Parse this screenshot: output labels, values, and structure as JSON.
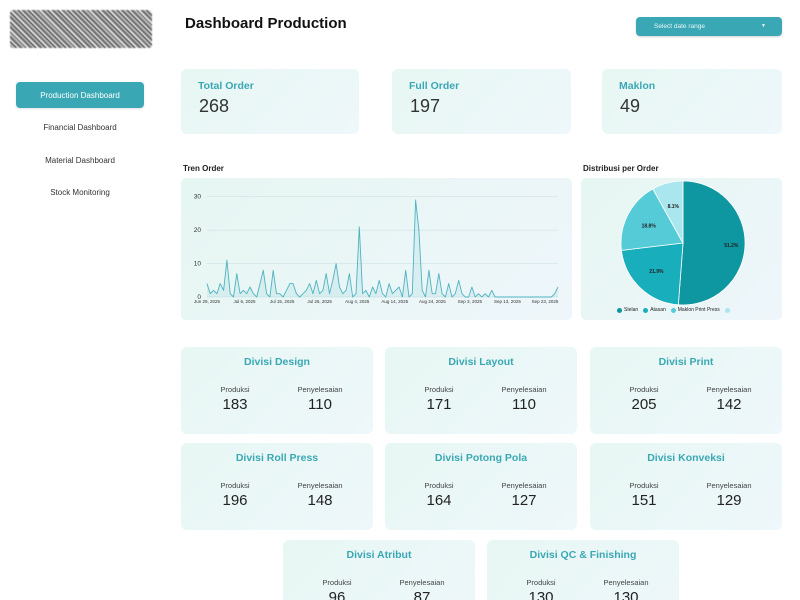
{
  "sidebar": {
    "items": [
      {
        "label": "Production Dashboard",
        "active": true
      },
      {
        "label": "Financial Dashboard",
        "active": false
      },
      {
        "label": "Material Dashboard",
        "active": false
      },
      {
        "label": "Stock Monitoring",
        "active": false
      }
    ]
  },
  "header": {
    "title": "Dashboard Production",
    "date_placeholder": "Select date range",
    "caret_icon": "chevron-down-icon"
  },
  "kpis": [
    {
      "label": "Total Order",
      "value": "268"
    },
    {
      "label": "Full Order",
      "value": "197"
    },
    {
      "label": "Maklon",
      "value": "49"
    }
  ],
  "colors": {
    "accent": "#3aa8b4",
    "line": "#4fb3c0",
    "pie": [
      "#0e96a1",
      "#19aebb",
      "#55cbd8",
      "#a9e6ee"
    ]
  },
  "charts": {
    "trend_title": "Tren Order",
    "pie_title": "Distribusi per Order"
  },
  "chart_data": [
    {
      "type": "line",
      "title": "Tren Order",
      "x_tick_labels": [
        "Jun 29, 2025",
        "Jul 6, 2025",
        "Jul 15, 2025",
        "Jul 26, 2025",
        "Aug 4, 2025",
        "Aug 14, 2025",
        "Aug 24, 2025",
        "Sep 3, 2025",
        "Sep 13, 2025",
        "Sep 23, 2025"
      ],
      "y_ticks": [
        0,
        10,
        20,
        30
      ],
      "ylim": [
        0,
        32
      ],
      "grid": true,
      "series": [
        {
          "values": [
            4,
            1,
            2,
            1,
            4,
            2,
            11,
            1,
            0,
            7,
            1,
            2,
            1,
            3,
            1,
            0,
            4,
            8,
            1,
            0,
            8,
            1,
            1,
            0,
            2,
            4,
            4,
            1,
            0,
            1,
            2,
            4,
            1,
            5,
            1,
            2,
            7,
            1,
            5,
            10,
            3,
            1,
            2,
            7,
            0,
            1,
            21,
            1,
            2,
            0,
            3,
            1,
            5,
            1,
            0,
            4,
            1,
            2,
            3,
            0,
            8,
            0,
            1,
            29,
            20,
            2,
            0,
            8,
            1,
            1,
            7,
            1,
            0,
            4,
            0,
            1,
            5,
            1,
            0,
            0,
            3,
            0,
            1,
            0,
            1,
            0,
            2,
            0,
            0,
            0,
            0,
            0,
            0,
            0,
            0,
            0,
            0,
            0,
            0,
            0,
            0,
            0,
            0,
            0,
            0,
            1,
            3
          ]
        }
      ]
    },
    {
      "type": "pie",
      "title": "Distribusi per Order",
      "categories": [
        "Stelan",
        "Atasan",
        "Maklon Print Press",
        ""
      ],
      "values": [
        51.2,
        21.9,
        18.8,
        8.1
      ],
      "value_labels": [
        "51.2%",
        "21.9%",
        "18.8%",
        "8.1%"
      ],
      "legend": "bottom"
    }
  ],
  "divisions": [
    {
      "title": "Divisi Design",
      "produksi_label": "Produksi",
      "produksi": "183",
      "penyelesaian_label": "Penyelesaian",
      "penyelesaian": "110"
    },
    {
      "title": "Divisi Layout",
      "produksi_label": "Produksi",
      "produksi": "171",
      "penyelesaian_label": "Penyelesaian",
      "penyelesaian": "110"
    },
    {
      "title": "Divisi Print",
      "produksi_label": "Produksi",
      "produksi": "205",
      "penyelesaian_label": "Penyelesaian",
      "penyelesaian": "142"
    },
    {
      "title": "Divisi Roll Press",
      "produksi_label": "Produksi",
      "produksi": "196",
      "penyelesaian_label": "Penyelesaian",
      "penyelesaian": "148"
    },
    {
      "title": "Divisi Potong Pola",
      "produksi_label": "Produksi",
      "produksi": "164",
      "penyelesaian_label": "Penyelesaian",
      "penyelesaian": "127"
    },
    {
      "title": "Divisi Konveksi",
      "produksi_label": "Produksi",
      "produksi": "151",
      "penyelesaian_label": "Penyelesaian",
      "penyelesaian": "129"
    },
    {
      "title": "Divisi Atribut",
      "produksi_label": "Produksi",
      "produksi": "96",
      "penyelesaian_label": "Penyelesaian",
      "penyelesaian": "87"
    },
    {
      "title": "Divisi QC & Finishing",
      "produksi_label": "Produksi",
      "produksi": "130",
      "penyelesaian_label": "Penyelesaian",
      "penyelesaian": "130"
    }
  ]
}
